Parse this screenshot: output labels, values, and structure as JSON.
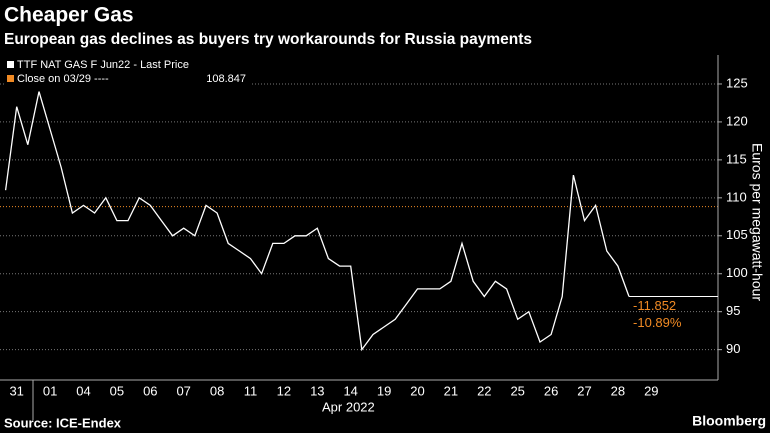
{
  "chart_data": {
    "type": "line",
    "title": "Cheaper Gas",
    "subtitle": "European gas declines as buyers try workarounds for Russia payments",
    "y_label": "Euros per megawatt-hour",
    "x_label": "Apr 2022",
    "source": "Source: ICE-Endex",
    "brand": "Bloomberg",
    "categories": [
      null,
      "31",
      null,
      null,
      "01",
      null,
      null,
      "04",
      null,
      null,
      "05",
      null,
      null,
      "06",
      null,
      null,
      "07",
      null,
      null,
      "08",
      null,
      null,
      "11",
      null,
      null,
      "12",
      null,
      null,
      "13",
      null,
      null,
      "14",
      null,
      null,
      "19",
      null,
      null,
      "20",
      null,
      null,
      "21",
      null,
      null,
      "22",
      null,
      null,
      "25",
      null,
      null,
      "26",
      null,
      null,
      "27",
      null,
      null,
      "28",
      null,
      null,
      "29",
      null
    ],
    "series": [
      {
        "name": "TTF NAT GAS F Jun22 - Last Price",
        "color": "#ffffff",
        "values": [
          111,
          122,
          117,
          124,
          119,
          114,
          108,
          109,
          108,
          110,
          107,
          107,
          110,
          109,
          107,
          105,
          106,
          105,
          109,
          108,
          104,
          103,
          102,
          100,
          104,
          104,
          105,
          105,
          106,
          102,
          101,
          101,
          90,
          92,
          93,
          94,
          96,
          98,
          98,
          98,
          99,
          104,
          99,
          97,
          99,
          98,
          94,
          95,
          91,
          92,
          97,
          113,
          107,
          109,
          103,
          101,
          97,
          null,
          null,
          null
        ]
      }
    ],
    "close": {
      "label": "Close on 03/29 ----",
      "value": 108.847,
      "color": "#f08a24"
    },
    "annotations": [
      "-11.852",
      "-10.89%"
    ],
    "ylim": [
      86,
      127.5
    ],
    "yticks": [
      90,
      95,
      100,
      105,
      110,
      115,
      120,
      125
    ],
    "grid": true
  }
}
